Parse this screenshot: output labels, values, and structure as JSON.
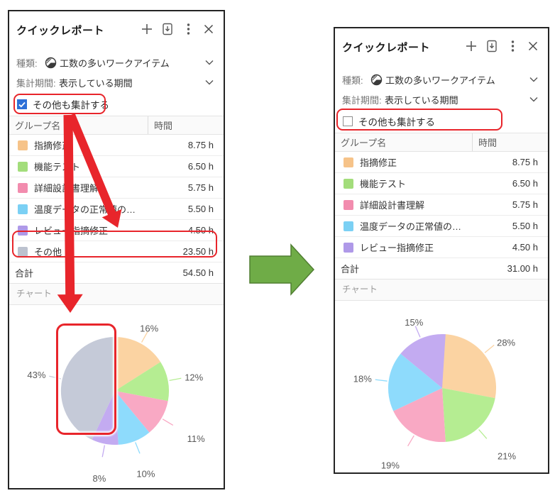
{
  "panel_before": {
    "title": "クイックレポート",
    "toolbar_icons": [
      "add-report-icon",
      "export-report-icon",
      "more-menu-icon",
      "close-icon"
    ],
    "type_row": {
      "label": "種類:",
      "value": "工数の多いワークアイテム"
    },
    "period_row": {
      "label": "集計期間:",
      "value": "表示している期間"
    },
    "checkbox": {
      "label": "その他も集計する",
      "checked": true
    },
    "table": {
      "columns": [
        "グループ名",
        "時間"
      ],
      "rows": [
        {
          "name": "指摘修正",
          "value": "8.75 h",
          "color": "#f6c389"
        },
        {
          "name": "機能テスト",
          "value": "6.50 h",
          "color": "#a3dd7b"
        },
        {
          "name": "詳細設計書理解",
          "value": "5.75 h",
          "color": "#f28cae"
        },
        {
          "name": "温度データの正常値の…",
          "value": "5.50 h",
          "color": "#7bd0f4"
        },
        {
          "name": "レビュー指摘修正",
          "value": "4.50 h",
          "color": "#af99e8"
        },
        {
          "name": "その他",
          "value": "23.50 h",
          "color": "#bcc2cf"
        }
      ],
      "total_label": "合計",
      "total_value": "54.50 h"
    },
    "chart_section_label": "チャート",
    "chart_index": 0
  },
  "panel_after": {
    "title": "クイックレポート",
    "toolbar_icons": [
      "add-report-icon",
      "export-report-icon",
      "more-menu-icon",
      "close-icon"
    ],
    "type_row": {
      "label": "種類:",
      "value": "工数の多いワークアイテム"
    },
    "period_row": {
      "label": "集計期間:",
      "value": "表示している期間"
    },
    "checkbox": {
      "label": "その他も集計する",
      "checked": false
    },
    "table": {
      "columns": [
        "グループ名",
        "時間"
      ],
      "rows": [
        {
          "name": "指摘修正",
          "value": "8.75 h",
          "color": "#f6c389"
        },
        {
          "name": "機能テスト",
          "value": "6.50 h",
          "color": "#a3dd7b"
        },
        {
          "name": "詳細設計書理解",
          "value": "5.75 h",
          "color": "#f28cae"
        },
        {
          "name": "温度データの正常値の…",
          "value": "5.50 h",
          "color": "#7bd0f4"
        },
        {
          "name": "レビュー指摘修正",
          "value": "4.50 h",
          "color": "#af99e8"
        }
      ],
      "total_label": "合計",
      "total_value": "31.00 h"
    },
    "chart_section_label": "チャート",
    "chart_index": 1
  },
  "chart_data": [
    {
      "type": "pie",
      "title": "チャート",
      "labels": [
        "指摘修正",
        "機能テスト",
        "詳細設計書理解",
        "温度データの正常値の…",
        "レビュー指摘修正",
        "その他"
      ],
      "values_hours": [
        8.75,
        6.5,
        5.75,
        5.5,
        4.5,
        23.5
      ],
      "values_pct": [
        16,
        12,
        11,
        10,
        8,
        43
      ],
      "colors": [
        "#fbd3a2",
        "#b5ed92",
        "#f9a9c4",
        "#8edbfc",
        "#c3abf1",
        "#c5cad8"
      ],
      "start_angle_deg": 0,
      "direction": "clockwise",
      "label_format": "percent",
      "legend": "none"
    },
    {
      "type": "pie",
      "title": "チャート",
      "labels": [
        "指摘修正",
        "機能テスト",
        "詳細設計書理解",
        "温度データの正常値の…",
        "レビュー指摘修正"
      ],
      "values_hours": [
        8.75,
        6.5,
        5.75,
        5.5,
        4.5
      ],
      "values_pct": [
        28,
        21,
        19,
        18,
        15
      ],
      "colors": [
        "#fbd3a2",
        "#b5ed92",
        "#f9a9c4",
        "#8edbfc",
        "#c3abf1"
      ],
      "start_angle_deg": 0,
      "direction": "clockwise",
      "label_format": "percent",
      "legend": "none"
    }
  ],
  "annotations": {
    "highlight_color": "#e8252b",
    "checkbox_accent": "#2d70d8",
    "transition_arrow": {
      "fill": "#6fac47",
      "stroke": "#507e32"
    }
  }
}
